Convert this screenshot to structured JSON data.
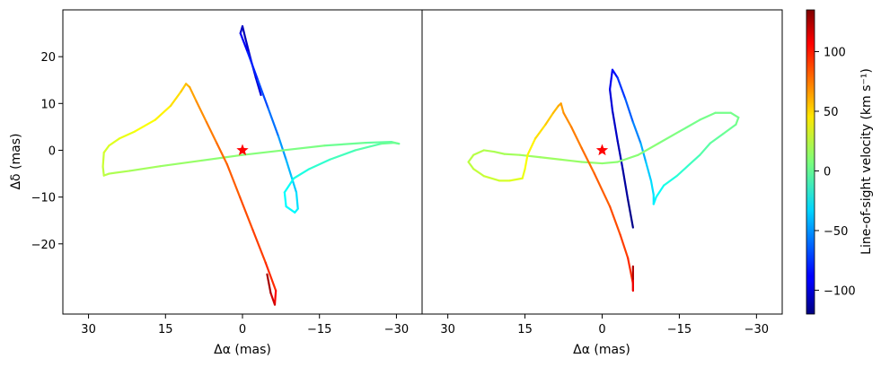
{
  "chart_data": [
    {
      "type": "line",
      "panel": "left",
      "xlabel": "Δα (mas)",
      "ylabel": "Δδ (mas)",
      "xlim": [
        35,
        -35
      ],
      "ylim": [
        -35,
        30
      ],
      "xticks": [
        30,
        15,
        0,
        -15,
        -30
      ],
      "xtick_labels": [
        "30",
        "15",
        "0",
        "−15",
        "−30"
      ],
      "yticks": [
        20,
        10,
        0,
        -10,
        -20
      ],
      "ytick_labels": [
        "20",
        "10",
        "0",
        "−10",
        "−20"
      ],
      "star": {
        "x": 0,
        "y": 0,
        "color": "#ff0000"
      },
      "series": [
        {
          "points": [
            [
              -3.6,
              11.8,
              -100
            ],
            [
              -2.6,
              15.5,
              -95
            ],
            [
              -1.6,
              19.5,
              -100
            ],
            [
              -0.6,
              23.8,
              -105
            ],
            [
              0.0,
              26.5,
              -110
            ],
            [
              0.4,
              25.0,
              -95
            ],
            [
              -1.0,
              21.0,
              -85
            ],
            [
              -3.0,
              15.0,
              -75
            ],
            [
              -5.0,
              9.0,
              -65
            ],
            [
              -7.0,
              3.0,
              -55
            ],
            [
              -8.5,
              -2.0,
              -45
            ],
            [
              -9.5,
              -5.5,
              -40
            ],
            [
              -10.5,
              -9.0,
              -35
            ],
            [
              -10.8,
              -12.5,
              -30
            ],
            [
              -10.2,
              -13.3,
              -25
            ],
            [
              -8.5,
              -12.0,
              -25
            ],
            [
              -8.2,
              -9.0,
              -25
            ],
            [
              -10.0,
              -6.0,
              -20
            ],
            [
              -13.0,
              -4.0,
              -15
            ],
            [
              -17.0,
              -2.0,
              -10
            ],
            [
              -22.0,
              0.0,
              -5
            ],
            [
              -27.0,
              1.4,
              0
            ],
            [
              -29.5,
              1.6,
              5
            ],
            [
              -30.5,
              1.4,
              5
            ],
            [
              -29.0,
              1.8,
              0
            ],
            [
              -24.0,
              1.6,
              0
            ],
            [
              -16.0,
              1.0,
              5
            ],
            [
              -8.0,
              0.0,
              8
            ],
            [
              0.0,
              -1.0,
              10
            ],
            [
              8.0,
              -2.2,
              12
            ],
            [
              16.0,
              -3.4,
              15
            ],
            [
              22.0,
              -4.4,
              18
            ],
            [
              26.0,
              -5.0,
              20
            ],
            [
              27.0,
              -5.4,
              22
            ],
            [
              27.2,
              -3.5,
              25
            ],
            [
              27.0,
              -0.5,
              28
            ],
            [
              26.0,
              1.0,
              30
            ],
            [
              24.0,
              2.5,
              33
            ],
            [
              21.0,
              4.0,
              36
            ],
            [
              17.0,
              6.5,
              40
            ],
            [
              14.0,
              9.5,
              45
            ],
            [
              12.0,
              12.5,
              50
            ],
            [
              11.0,
              14.2,
              55
            ],
            [
              10.3,
              13.5,
              60
            ],
            [
              9.0,
              10.5,
              65
            ],
            [
              7.0,
              6.0,
              70
            ],
            [
              5.0,
              1.5,
              75
            ],
            [
              3.0,
              -3.0,
              78
            ],
            [
              0.5,
              -10.0,
              82
            ],
            [
              -2.0,
              -17.0,
              86
            ],
            [
              -4.5,
              -24.0,
              90
            ],
            [
              -6.5,
              -30.0,
              95
            ],
            [
              -6.3,
              -33.0,
              110
            ],
            [
              -5.5,
              -30.5,
              120
            ],
            [
              -4.8,
              -26.5,
              130
            ]
          ]
        }
      ]
    },
    {
      "type": "line",
      "panel": "right",
      "xlabel": "Δα (mas)",
      "ylabel": "",
      "xlim": [
        35,
        -35
      ],
      "ylim": [
        -35,
        30
      ],
      "xticks": [
        30,
        15,
        0,
        -15,
        -30
      ],
      "xtick_labels": [
        "30",
        "15",
        "0",
        "−15",
        "−30"
      ],
      "star": {
        "x": 0,
        "y": 0,
        "color": "#ff0000"
      },
      "series": [
        {
          "points": [
            [
              -6.0,
              -16.5,
              -120
            ],
            [
              -5.0,
              -10.5,
              -115
            ],
            [
              -4.0,
              -4.0,
              -110
            ],
            [
              -3.0,
              2.0,
              -105
            ],
            [
              -2.0,
              8.5,
              -100
            ],
            [
              -1.5,
              13.0,
              -95
            ],
            [
              -2.0,
              17.2,
              -90
            ],
            [
              -3.0,
              15.5,
              -80
            ],
            [
              -4.5,
              11.0,
              -70
            ],
            [
              -6.0,
              6.0,
              -60
            ],
            [
              -7.5,
              1.5,
              -50
            ],
            [
              -8.5,
              -2.5,
              -40
            ],
            [
              -9.5,
              -6.5,
              -35
            ],
            [
              -10.0,
              -9.5,
              -30
            ],
            [
              -10.0,
              -11.5,
              -30
            ],
            [
              -10.5,
              -10.0,
              -25
            ],
            [
              -12.0,
              -7.5,
              -20
            ],
            [
              -14.5,
              -5.5,
              -15
            ],
            [
              -17.0,
              -3.0,
              -10
            ],
            [
              -19.0,
              -1.0,
              -5
            ],
            [
              -21.0,
              1.5,
              0
            ],
            [
              -23.5,
              3.5,
              0
            ],
            [
              -26.0,
              5.5,
              5
            ],
            [
              -26.5,
              7.0,
              5
            ],
            [
              -25.0,
              8.0,
              5
            ],
            [
              -22.0,
              8.0,
              5
            ],
            [
              -19.0,
              6.5,
              5
            ],
            [
              -15.0,
              4.0,
              5
            ],
            [
              -11.0,
              1.5,
              10
            ],
            [
              -7.0,
              -1.0,
              10
            ],
            [
              -3.0,
              -2.5,
              10
            ],
            [
              0.0,
              -2.8,
              12
            ],
            [
              4.0,
              -2.5,
              12
            ],
            [
              8.0,
              -2.0,
              15
            ],
            [
              12.0,
              -1.5,
              15
            ],
            [
              16.0,
              -1.0,
              15
            ],
            [
              19.0,
              -0.8,
              18
            ],
            [
              21.0,
              -0.3,
              18
            ],
            [
              23.0,
              0.0,
              20
            ],
            [
              25.0,
              -1.0,
              22
            ],
            [
              26.0,
              -2.5,
              22
            ],
            [
              25.0,
              -4.0,
              24
            ],
            [
              23.0,
              -5.5,
              25
            ],
            [
              20.0,
              -6.5,
              28
            ],
            [
              18.0,
              -6.5,
              30
            ],
            [
              15.5,
              -6.0,
              33
            ],
            [
              15.0,
              -4.0,
              36
            ],
            [
              14.5,
              -1.0,
              40
            ],
            [
              13.0,
              2.5,
              45
            ],
            [
              11.0,
              5.5,
              50
            ],
            [
              9.5,
              8.0,
              55
            ],
            [
              8.5,
              9.5,
              60
            ],
            [
              8.0,
              10.0,
              62
            ],
            [
              7.5,
              8.0,
              66
            ],
            [
              6.0,
              5.0,
              70
            ],
            [
              4.0,
              0.5,
              74
            ],
            [
              1.5,
              -5.0,
              78
            ],
            [
              -1.5,
              -12.0,
              82
            ],
            [
              -3.5,
              -18.0,
              86
            ],
            [
              -5.0,
              -23.0,
              90
            ],
            [
              -6.0,
              -28.5,
              95
            ],
            [
              -6.0,
              -30.0,
              100
            ],
            [
              -6.0,
              -27.5,
              115
            ],
            [
              -6.0,
              -24.8,
              130
            ]
          ]
        }
      ]
    }
  ],
  "colorbar": {
    "label": "Line-of-sight velocity (km s⁻¹)",
    "range": [
      -120,
      135
    ],
    "ticks": [
      100,
      50,
      0,
      -50,
      -100
    ],
    "tick_labels": [
      "100",
      "50",
      "0",
      "−50",
      "−100"
    ],
    "colormap": "jet"
  }
}
